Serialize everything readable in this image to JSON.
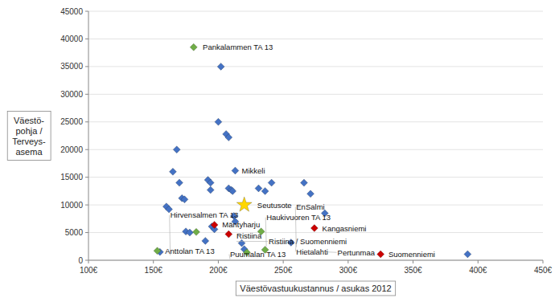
{
  "chart_data": {
    "type": "scatter",
    "xlabel": "Väestövastuukustannus / asukas 2012",
    "ylabel": "Väestö-\npohja /\nTerveys-\nasema",
    "xlim": [
      100,
      450
    ],
    "ylim": [
      0,
      45000
    ],
    "xticks": [
      {
        "value": 100,
        "label": "100€"
      },
      {
        "value": 150,
        "label": "150€"
      },
      {
        "value": 200,
        "label": "200€"
      },
      {
        "value": 250,
        "label": "250€"
      },
      {
        "value": 300,
        "label": "300€"
      },
      {
        "value": 350,
        "label": "350€"
      },
      {
        "value": 400,
        "label": "400€"
      },
      {
        "value": 450,
        "label": "450€"
      }
    ],
    "yticks": [
      0,
      5000,
      10000,
      15000,
      20000,
      25000,
      30000,
      35000,
      40000,
      45000
    ],
    "grid": true,
    "series": [
      {
        "color": "#4472c4",
        "marker": "diamond",
        "x": [
          155,
          160,
          162,
          165,
          168,
          170,
          172,
          174,
          175,
          178,
          190,
          192,
          194,
          194,
          195,
          197,
          200,
          202,
          206,
          208,
          208,
          210,
          211,
          212,
          213,
          213,
          218,
          220,
          231,
          236,
          241,
          256,
          266,
          271,
          282,
          392
        ],
        "values": [
          1500,
          9700,
          9200,
          16000,
          20000,
          14000,
          11200,
          11000,
          5200,
          5000,
          3500,
          14500,
          14000,
          12700,
          6100,
          5600,
          25000,
          35000,
          22800,
          22200,
          13000,
          12700,
          12500,
          8000,
          7000,
          16200,
          3100,
          2000,
          13000,
          12500,
          14000,
          3200,
          14000,
          12000,
          8500,
          1100
        ]
      },
      {
        "color": "#cc0000",
        "marker": "diamond",
        "x": [
          197,
          208,
          274,
          325
        ],
        "values": [
          6400,
          4700,
          5800,
          1100
        ]
      },
      {
        "color": "#70ad47",
        "marker": "diamond",
        "x": [
          153,
          183,
          222,
          181,
          236,
          233
        ],
        "values": [
          1700,
          5100,
          1400,
          38500,
          1900,
          5200
        ]
      },
      {
        "color": "#ffd700",
        "marker": "star",
        "x": [
          220
        ],
        "values": [
          10000
        ]
      }
    ],
    "annotations": [
      {
        "text": "Mikkeli",
        "x": 218,
        "y": 16200
      },
      {
        "text": "Seutusote",
        "x": 230,
        "y": 10000
      },
      {
        "text": "Pankalammen TA 13",
        "x": 188,
        "y": 38500
      },
      {
        "text": "Mäntyharju",
        "x": 203,
        "y": 6400
      },
      {
        "text": "Ristiina",
        "x": 214,
        "y": 4700
      },
      {
        "text": "Kangasniemi",
        "x": 280,
        "y": 5800
      },
      {
        "text": "Suomenniemi",
        "x": 331,
        "y": 1100
      },
      {
        "text": "Anttolan TA 13",
        "x": 159,
        "y": 1700
      },
      {
        "text": "Hirvensalmen TA 13",
        "x": 163,
        "y": 900
      },
      {
        "text": "Puumalan TA 13",
        "x": 209,
        "y": 200
      },
      {
        "text": "Ristiina / Suomenniemi",
        "x": 214,
        "y": 3400
      },
      {
        "text": "Haukivuoren TA 13",
        "x": 237,
        "y": 2500
      },
      {
        "text": "Hietalahti",
        "x": 260,
        "y": 3000
      },
      {
        "text": "EnSalmi",
        "x": 260,
        "y": 2400
      },
      {
        "text": "Pertunmaa",
        "x": 267,
        "y": 1700
      }
    ]
  }
}
